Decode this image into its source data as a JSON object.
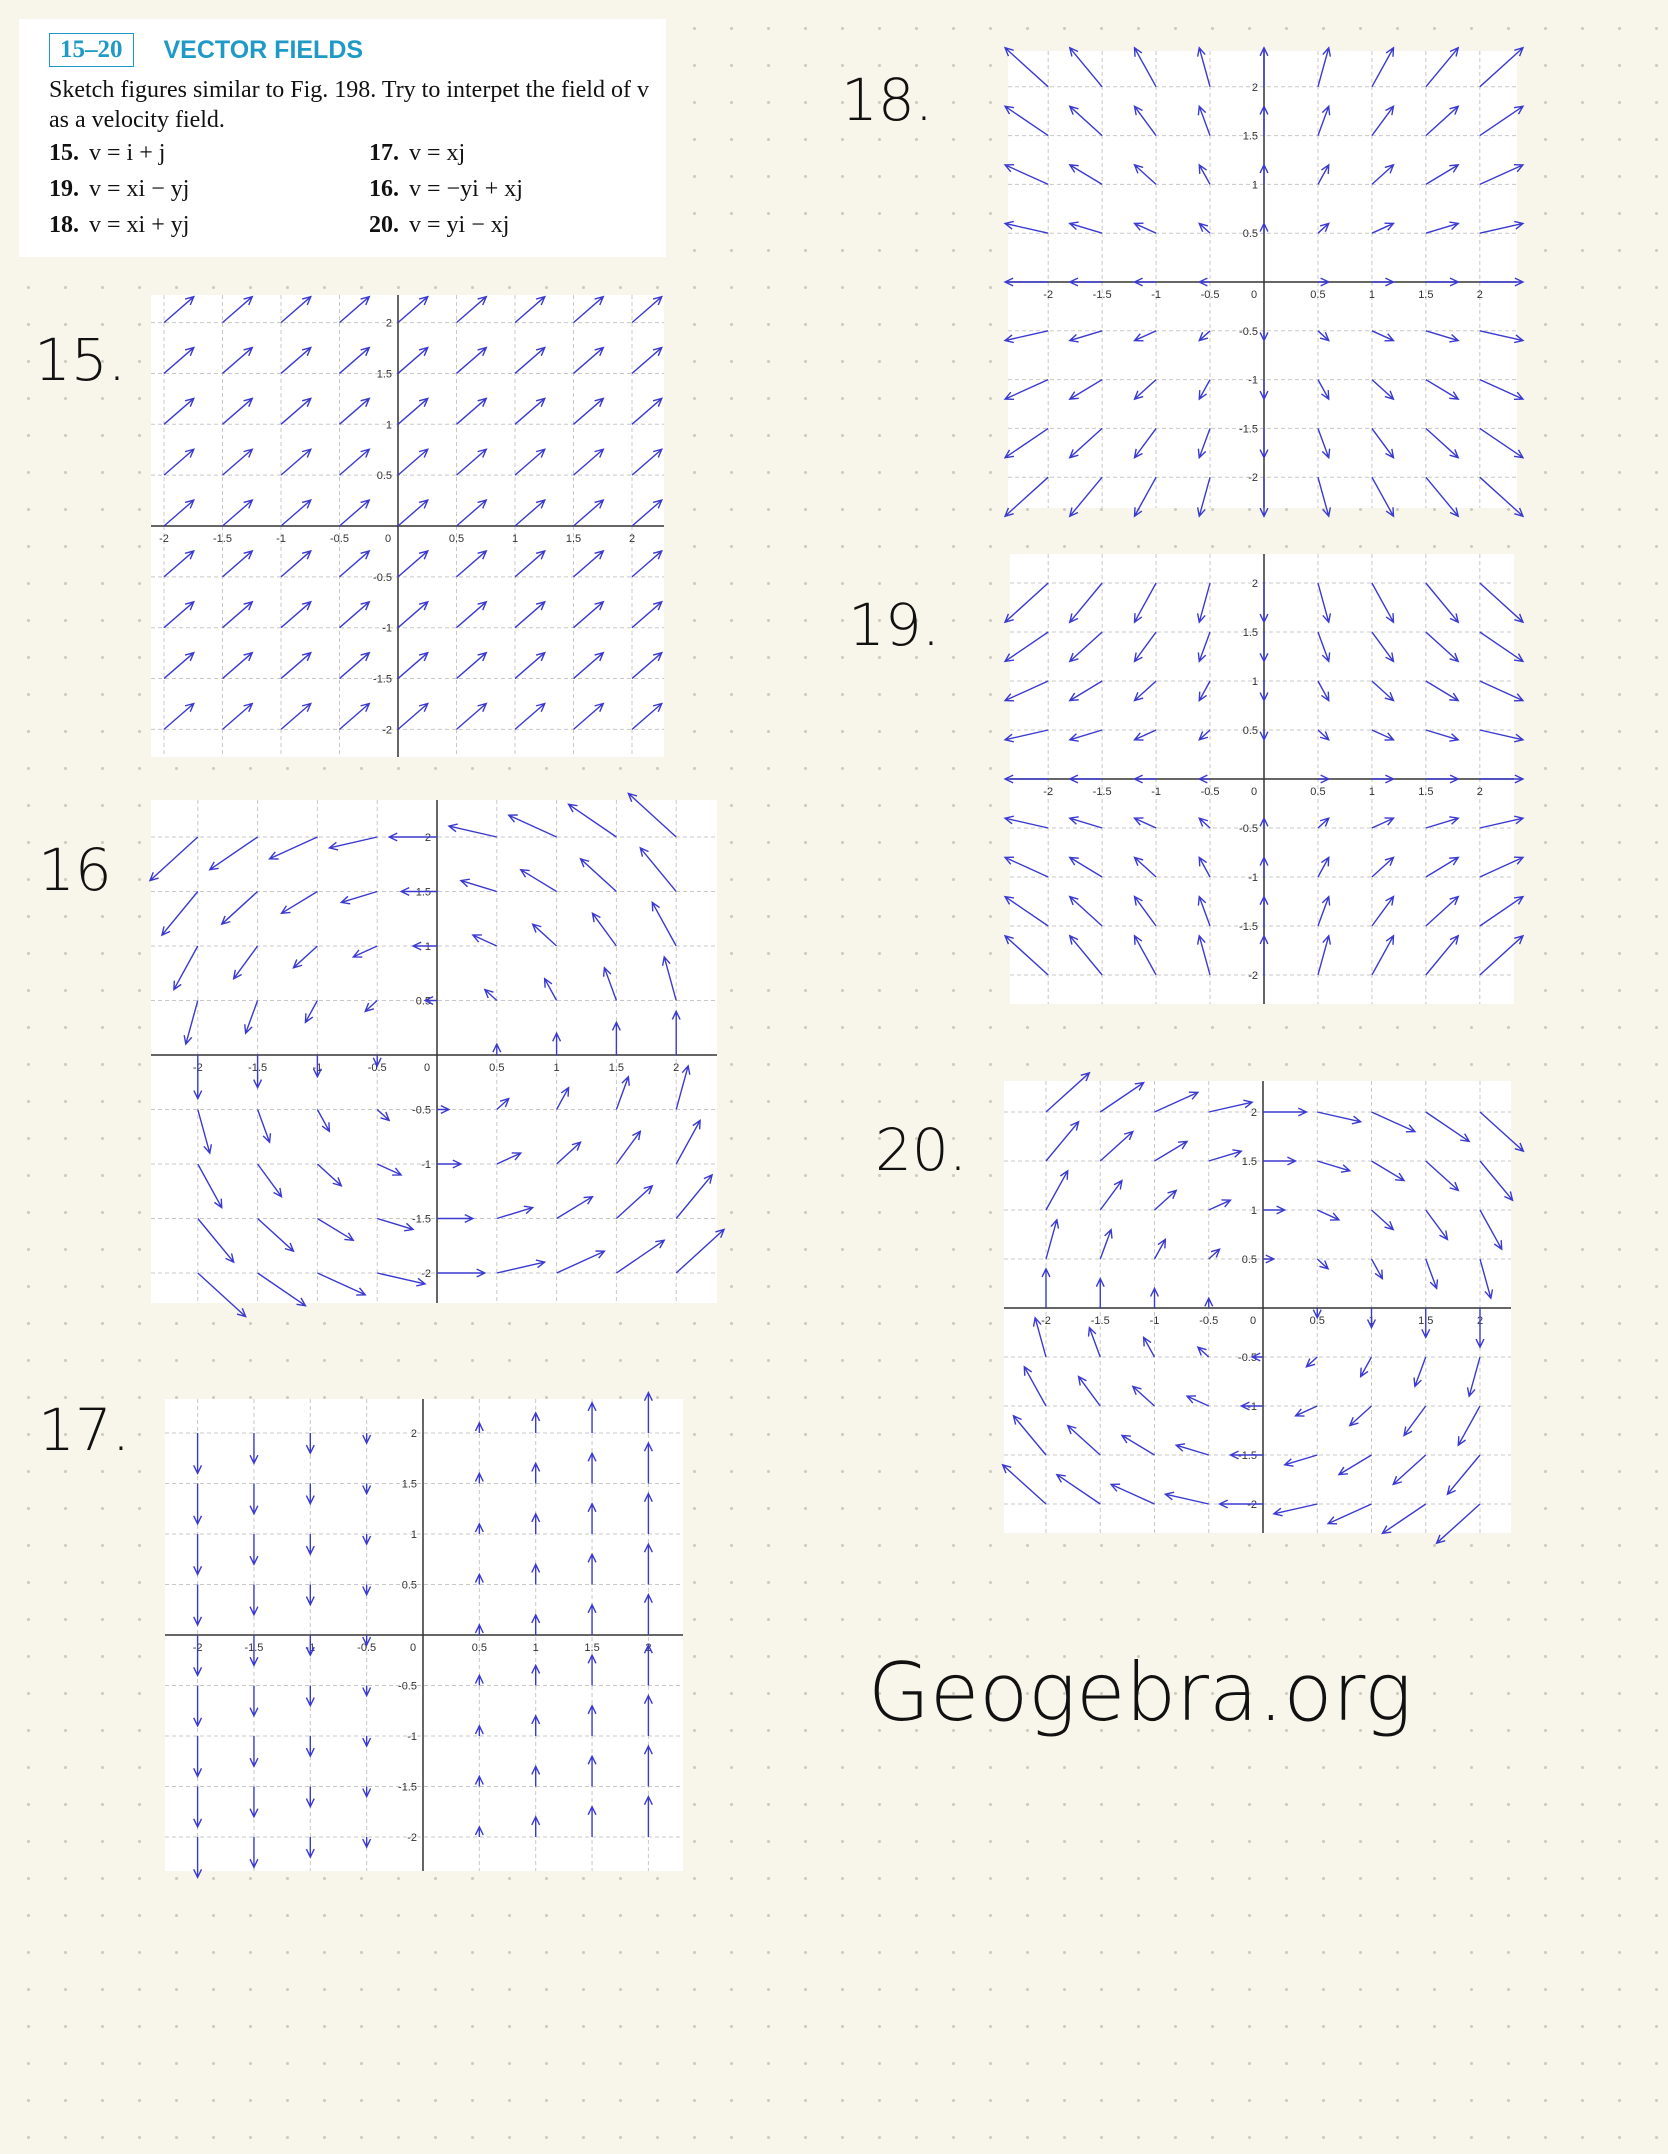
{
  "header": {
    "range": "15–20",
    "title": "VECTOR FIELDS",
    "description": "Sketch figures similar to Fig. 198. Try to interpet the field of v as a velocity field.",
    "problems": [
      {
        "number": "15.",
        "formula": "v = i + j"
      },
      {
        "number": "16.",
        "formula": "v = −yi + xj"
      },
      {
        "number": "17.",
        "formula": "v = xj"
      },
      {
        "number": "18.",
        "formula": "v = xi + yj"
      },
      {
        "number": "19.",
        "formula": "v = xi − yj"
      },
      {
        "number": "20.",
        "formula": "v = yi − xj"
      }
    ]
  },
  "plots": [
    {
      "label": "15.",
      "xticks": [
        -2,
        -1.5,
        -1,
        -0.5,
        0,
        0.5,
        1,
        1.5,
        2
      ],
      "yticks": [
        2,
        1.5,
        1,
        0.5,
        -0.5,
        -1,
        -1.5,
        -2
      ]
    },
    {
      "label": "16",
      "xticks": [
        -2,
        -1.5,
        -1,
        -0.5,
        0,
        0.5,
        1,
        1.5,
        2
      ],
      "yticks": [
        2,
        1.5,
        1,
        0.5,
        -0.5,
        -1,
        -1.5,
        -2
      ]
    },
    {
      "label": "17.",
      "xticks": [
        -2,
        -1.5,
        -1,
        -0.5,
        0,
        0.5,
        1,
        1.5,
        2
      ],
      "yticks": [
        2,
        1.5,
        1,
        0.5,
        -0.5,
        -1,
        -1.5,
        -2
      ]
    },
    {
      "label": "18.",
      "xticks": [
        -2,
        -1.5,
        -1,
        -0.5,
        0,
        0.5,
        1,
        1.5,
        2
      ],
      "yticks": [
        2,
        1.5,
        1,
        0.5,
        -0.5,
        -1,
        -1.5,
        -2
      ]
    },
    {
      "label": "19.",
      "xticks": [
        -2,
        -1.5,
        -1,
        -0.5,
        0,
        0.5,
        1,
        1.5,
        2
      ],
      "yticks": [
        2,
        1.5,
        1,
        0.5,
        -0.5,
        -1,
        -1.5,
        -2
      ]
    },
    {
      "label": "20.",
      "xticks": [
        -2,
        -1.5,
        -1,
        -0.5,
        0,
        0.5,
        1,
        1.5,
        2
      ],
      "yticks": [
        2,
        1.5,
        1,
        0.5,
        -0.5,
        -1,
        -1.5,
        -2
      ]
    }
  ],
  "footer_note": "Geogebra.org"
}
